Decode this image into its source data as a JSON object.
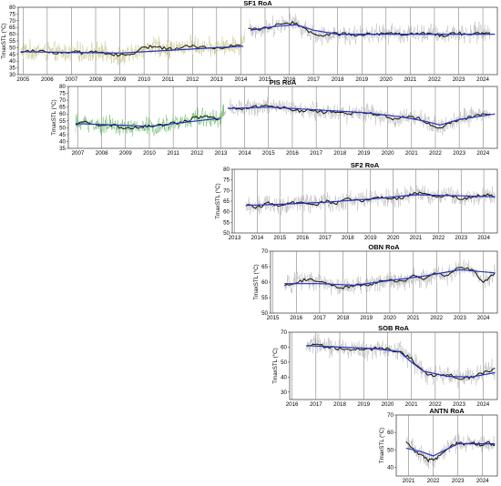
{
  "figure": {
    "ylabel": "TmaxSTL (°C)"
  },
  "colors": {
    "raw": "#b8b8b8",
    "smooth": "#111111",
    "trend": "#2233bb",
    "pre_raw_yellow": "#c8c48a",
    "pre_raw_green": "#66b866",
    "grid": "#555555"
  },
  "chart_data": [
    {
      "id": "sf1",
      "type": "line",
      "title": "SF1 RoA",
      "ylabel": "TmaxSTL (°C)",
      "xlim": [
        2004.8,
        2024.6
      ],
      "ylim": [
        30,
        80
      ],
      "xticks": [
        2005,
        2006,
        2007,
        2008,
        2009,
        2010,
        2011,
        2012,
        2013,
        2014,
        2015,
        2016,
        2017,
        2018,
        2019,
        2020,
        2021,
        2022,
        2023,
        2024
      ],
      "yticks": [
        30,
        35,
        40,
        45,
        50,
        55,
        60,
        65,
        70,
        75,
        80
      ],
      "gap_after": 2014.2,
      "pre_raw_color": "#c8c48a",
      "smooth": [
        [
          2004.9,
          47
        ],
        [
          2005.5,
          48
        ],
        [
          2006.0,
          47
        ],
        [
          2006.5,
          46
        ],
        [
          2007.0,
          47
        ],
        [
          2007.5,
          46
        ],
        [
          2008.0,
          47
        ],
        [
          2008.5,
          46
        ],
        [
          2009.0,
          44
        ],
        [
          2009.5,
          45
        ],
        [
          2010.0,
          50
        ],
        [
          2010.5,
          51
        ],
        [
          2011.0,
          49
        ],
        [
          2011.5,
          50
        ],
        [
          2012.0,
          52
        ],
        [
          2012.5,
          50
        ],
        [
          2013.0,
          50
        ],
        [
          2013.5,
          51
        ],
        [
          2014.0,
          52
        ],
        [
          2014.3,
          65
        ],
        [
          2014.8,
          63
        ],
        [
          2015.3,
          66
        ],
        [
          2015.8,
          69
        ],
        [
          2016.3,
          68
        ],
        [
          2016.8,
          62
        ],
        [
          2017.3,
          59
        ],
        [
          2017.8,
          60
        ],
        [
          2018.3,
          60
        ],
        [
          2018.8,
          59
        ],
        [
          2019.3,
          61
        ],
        [
          2019.8,
          60
        ],
        [
          2020.3,
          61
        ],
        [
          2020.8,
          60
        ],
        [
          2021.3,
          60
        ],
        [
          2021.8,
          61
        ],
        [
          2022.3,
          59
        ],
        [
          2022.8,
          61
        ],
        [
          2023.3,
          60
        ],
        [
          2023.8,
          61
        ],
        [
          2024.3,
          61
        ]
      ],
      "trend": [
        [
          2004.9,
          47
        ],
        [
          2007.0,
          46.5
        ],
        [
          2009.0,
          46
        ],
        [
          2011.0,
          48
        ],
        [
          2013.0,
          50
        ],
        [
          2014.1,
          51
        ],
        [
          2014.4,
          63
        ],
        [
          2015.5,
          66
        ],
        [
          2016.3,
          67
        ],
        [
          2017.0,
          63
        ],
        [
          2018.0,
          60
        ],
        [
          2020.0,
          60
        ],
        [
          2022.0,
          60
        ],
        [
          2024.5,
          60
        ]
      ]
    },
    {
      "id": "pis",
      "type": "line",
      "title": "PIS RoA",
      "ylabel": "TmaxSTL (°C)",
      "xlim": [
        2006.6,
        2024.6
      ],
      "ylim": [
        35,
        80
      ],
      "xticks": [
        2007,
        2008,
        2009,
        2010,
        2011,
        2012,
        2013,
        2014,
        2015,
        2016,
        2017,
        2018,
        2019,
        2020,
        2021,
        2022,
        2023,
        2024
      ],
      "yticks": [
        35,
        40,
        45,
        50,
        55,
        60,
        65,
        70,
        75,
        80
      ],
      "gap_after": 2013.2,
      "pre_raw_color": "#66b866",
      "smooth": [
        [
          2006.9,
          53
        ],
        [
          2007.4,
          54
        ],
        [
          2007.9,
          51
        ],
        [
          2008.4,
          52
        ],
        [
          2008.9,
          50
        ],
        [
          2009.4,
          50
        ],
        [
          2009.9,
          51
        ],
        [
          2010.4,
          52
        ],
        [
          2010.9,
          53
        ],
        [
          2011.4,
          54
        ],
        [
          2011.9,
          57
        ],
        [
          2012.4,
          58
        ],
        [
          2012.9,
          56
        ],
        [
          2013.3,
          65
        ],
        [
          2013.8,
          63
        ],
        [
          2014.3,
          65
        ],
        [
          2014.8,
          66
        ],
        [
          2015.3,
          65
        ],
        [
          2015.8,
          64
        ],
        [
          2016.3,
          62
        ],
        [
          2016.8,
          63
        ],
        [
          2017.3,
          61
        ],
        [
          2017.8,
          62
        ],
        [
          2018.3,
          60
        ],
        [
          2018.8,
          61
        ],
        [
          2019.3,
          60
        ],
        [
          2019.8,
          59
        ],
        [
          2020.3,
          56
        ],
        [
          2020.8,
          58
        ],
        [
          2021.3,
          57
        ],
        [
          2021.8,
          52
        ],
        [
          2022.3,
          50
        ],
        [
          2022.8,
          55
        ],
        [
          2023.3,
          57
        ],
        [
          2023.8,
          59
        ],
        [
          2024.3,
          60
        ]
      ],
      "trend": [
        [
          2006.9,
          53
        ],
        [
          2008.5,
          52
        ],
        [
          2010.0,
          51
        ],
        [
          2011.5,
          54
        ],
        [
          2013.0,
          57
        ],
        [
          2013.3,
          64
        ],
        [
          2015.0,
          65
        ],
        [
          2017.0,
          63
        ],
        [
          2019.0,
          61
        ],
        [
          2020.5,
          58
        ],
        [
          2021.5,
          55
        ],
        [
          2022.2,
          52
        ],
        [
          2023.0,
          56
        ],
        [
          2024.5,
          60
        ]
      ]
    },
    {
      "id": "sf2",
      "type": "line",
      "title": "SF2 RoA",
      "ylabel": "TmaxSTL (°C)",
      "xlim": [
        2012.9,
        2024.6
      ],
      "ylim": [
        50,
        80
      ],
      "xticks": [
        2013,
        2014,
        2015,
        2016,
        2017,
        2018,
        2019,
        2020,
        2021,
        2022,
        2023,
        2024
      ],
      "yticks": [
        50,
        55,
        60,
        65,
        70,
        75,
        80
      ],
      "gap_after": null,
      "pre_raw_color": "#b8b8b8",
      "smooth": [
        [
          2013.5,
          63
        ],
        [
          2014.0,
          62
        ],
        [
          2014.5,
          64
        ],
        [
          2015.0,
          63
        ],
        [
          2015.5,
          64
        ],
        [
          2016.0,
          65
        ],
        [
          2016.5,
          63
        ],
        [
          2017.0,
          65
        ],
        [
          2017.5,
          64
        ],
        [
          2018.0,
          66
        ],
        [
          2018.5,
          65
        ],
        [
          2019.0,
          66
        ],
        [
          2019.5,
          67
        ],
        [
          2020.0,
          66
        ],
        [
          2020.5,
          67
        ],
        [
          2021.0,
          69
        ],
        [
          2021.5,
          68
        ],
        [
          2022.0,
          67
        ],
        [
          2022.5,
          68
        ],
        [
          2023.0,
          66
        ],
        [
          2023.5,
          67
        ],
        [
          2024.0,
          68
        ],
        [
          2024.5,
          67
        ]
      ],
      "trend": [
        [
          2013.5,
          63
        ],
        [
          2015.0,
          63.5
        ],
        [
          2017.0,
          64.5
        ],
        [
          2019.0,
          66
        ],
        [
          2021.0,
          68
        ],
        [
          2023.0,
          67.5
        ],
        [
          2024.5,
          67
        ]
      ]
    },
    {
      "id": "obn",
      "type": "line",
      "title": "OBN RoA",
      "ylabel": "TmaxSTL (°C)",
      "xlim": [
        2014.9,
        2024.6
      ],
      "ylim": [
        50,
        70
      ],
      "xticks": [
        2015,
        2016,
        2017,
        2018,
        2019,
        2020,
        2021,
        2022,
        2023,
        2024
      ],
      "yticks": [
        50,
        55,
        60,
        65,
        70
      ],
      "gap_after": null,
      "pre_raw_color": "#b8b8b8",
      "smooth": [
        [
          2015.5,
          59
        ],
        [
          2016.0,
          60
        ],
        [
          2016.5,
          61
        ],
        [
          2017.0,
          60
        ],
        [
          2017.5,
          59
        ],
        [
          2018.0,
          58
        ],
        [
          2018.5,
          59
        ],
        [
          2019.0,
          59
        ],
        [
          2019.5,
          60
        ],
        [
          2020.0,
          61
        ],
        [
          2020.5,
          60
        ],
        [
          2021.0,
          62
        ],
        [
          2021.5,
          61
        ],
        [
          2022.0,
          63
        ],
        [
          2022.5,
          62
        ],
        [
          2023.0,
          65
        ],
        [
          2023.5,
          64
        ],
        [
          2024.0,
          60
        ],
        [
          2024.5,
          63
        ]
      ],
      "trend": [
        [
          2015.5,
          59.5
        ],
        [
          2017.0,
          59.5
        ],
        [
          2018.5,
          59
        ],
        [
          2020.0,
          60.5
        ],
        [
          2021.5,
          62
        ],
        [
          2023.0,
          64
        ],
        [
          2024.5,
          63
        ]
      ]
    },
    {
      "id": "sob",
      "type": "line",
      "title": "SOB RoA",
      "ylabel": "TmaxSTL (°C)",
      "xlim": [
        2015.9,
        2024.6
      ],
      "ylim": [
        25,
        70
      ],
      "xticks": [
        2016,
        2017,
        2018,
        2019,
        2020,
        2021,
        2022,
        2023,
        2024
      ],
      "yticks": [
        30,
        40,
        50,
        60,
        70
      ],
      "gap_after": null,
      "pre_raw_color": "#b8b8b8",
      "smooth": [
        [
          2016.6,
          61
        ],
        [
          2017.0,
          62
        ],
        [
          2017.5,
          60
        ],
        [
          2018.0,
          59
        ],
        [
          2018.5,
          59
        ],
        [
          2019.0,
          58
        ],
        [
          2019.5,
          59
        ],
        [
          2020.0,
          59
        ],
        [
          2020.5,
          57
        ],
        [
          2021.0,
          52
        ],
        [
          2021.5,
          43
        ],
        [
          2022.0,
          41
        ],
        [
          2022.5,
          42
        ],
        [
          2023.0,
          39
        ],
        [
          2023.5,
          40
        ],
        [
          2024.0,
          43
        ],
        [
          2024.5,
          46
        ]
      ],
      "trend": [
        [
          2016.6,
          61
        ],
        [
          2018.0,
          60
        ],
        [
          2019.5,
          59
        ],
        [
          2020.5,
          57
        ],
        [
          2021.0,
          50
        ],
        [
          2021.5,
          44
        ],
        [
          2022.5,
          40.5
        ],
        [
          2023.5,
          40
        ],
        [
          2024.5,
          43
        ]
      ]
    },
    {
      "id": "antn",
      "type": "line",
      "title": "ANTN RoA",
      "ylabel": "TmaxSTL (°C)",
      "xlim": [
        2020.5,
        2024.6
      ],
      "ylim": [
        35,
        70
      ],
      "xticks": [
        2021,
        2022,
        2023,
        2024
      ],
      "yticks": [
        40,
        50,
        60,
        70
      ],
      "gap_after": null,
      "pre_raw_color": "#b8b8b8",
      "smooth": [
        [
          2020.9,
          55
        ],
        [
          2021.2,
          50
        ],
        [
          2021.5,
          47
        ],
        [
          2021.8,
          44
        ],
        [
          2022.1,
          45
        ],
        [
          2022.4,
          48
        ],
        [
          2022.7,
          52
        ],
        [
          2023.0,
          54
        ],
        [
          2023.3,
          53
        ],
        [
          2023.6,
          54
        ],
        [
          2023.9,
          53
        ],
        [
          2024.2,
          54
        ],
        [
          2024.5,
          53
        ]
      ],
      "trend": [
        [
          2020.9,
          51
        ],
        [
          2021.5,
          49
        ],
        [
          2022.0,
          46.5
        ],
        [
          2022.5,
          50
        ],
        [
          2023.0,
          53.5
        ],
        [
          2024.5,
          53.5
        ]
      ]
    }
  ]
}
